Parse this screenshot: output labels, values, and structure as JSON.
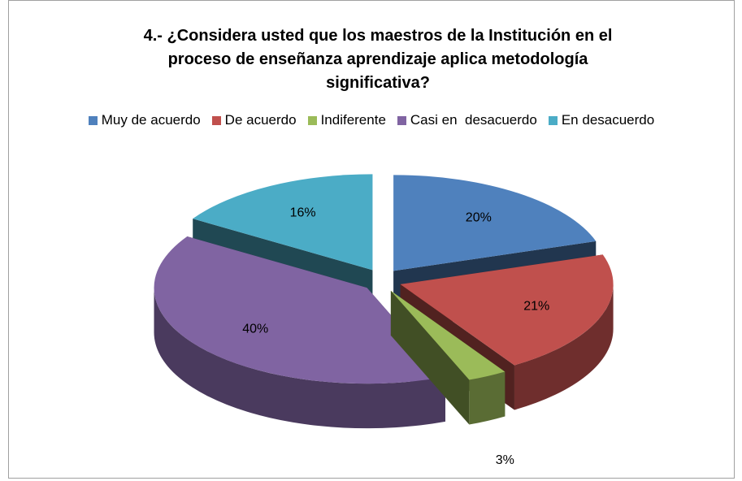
{
  "chart_data": {
    "type": "pie",
    "title": "4.- ¿Considera usted que los maestros de la Institución en el proceso de enseñanza aprendizaje aplica metodología significativa?",
    "categories": [
      "Muy de acuerdo",
      "De acuerdo",
      "Indiferente",
      "Casi en  desacuerdo",
      "En desacuerdo"
    ],
    "values": [
      20,
      21,
      3,
      40,
      16
    ],
    "value_labels": [
      "20%",
      "21%",
      "3%",
      "40%",
      "16%"
    ],
    "colors": [
      "#4f81bd",
      "#c0504d",
      "#9bbb59",
      "#8064a2",
      "#4bacc6"
    ]
  }
}
